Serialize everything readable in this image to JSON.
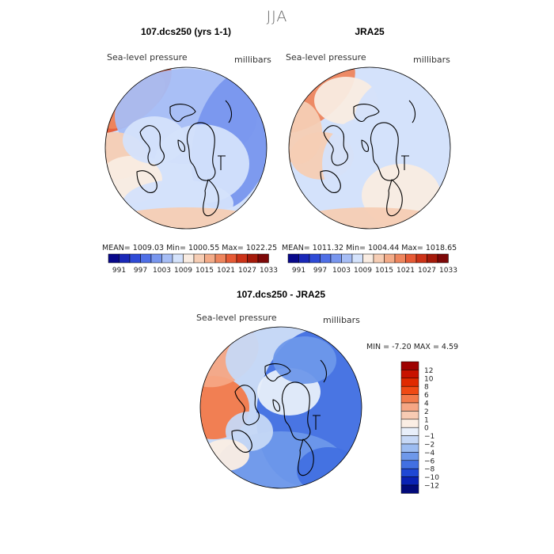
{
  "figure_title": "JJA",
  "chart_data": [
    {
      "type": "heatmap",
      "panel_title": "107.dcs250 (yrs 1-1)",
      "variable_label": "Sea-level pressure",
      "units_label": "millibars",
      "projection": "polar-stereographic-north",
      "stats": {
        "mean_label": "MEAN=",
        "mean": "1009.03",
        "min_label": "Min=",
        "min": "1000.55",
        "max_label": "Max=",
        "max": "1022.25"
      },
      "colorbar": {
        "orientation": "horizontal",
        "tick_labels": [
          "991",
          "997",
          "1003",
          "1009",
          "1015",
          "1021",
          "1027",
          "1033"
        ],
        "colors": [
          "#08088a",
          "#1a28b8",
          "#2e4ad6",
          "#4f6fe6",
          "#7896ee",
          "#a6bdf5",
          "#d4e2fb",
          "#f9ece2",
          "#f6cdb4",
          "#f3ab88",
          "#ee855d",
          "#e65a35",
          "#cc3318",
          "#a51a0a",
          "#7d0808"
        ]
      }
    },
    {
      "type": "heatmap",
      "panel_title": "JRA25",
      "variable_label": "Sea-level pressure",
      "units_label": "millibars",
      "projection": "polar-stereographic-north",
      "stats": {
        "mean_label": "MEAN=",
        "mean": "1011.32",
        "min_label": "Min=",
        "min": "1004.44",
        "max_label": "Max=",
        "max": "1018.65"
      },
      "colorbar": {
        "orientation": "horizontal",
        "tick_labels": [
          "991",
          "997",
          "1003",
          "1009",
          "1015",
          "1021",
          "1027",
          "1033"
        ],
        "colors": [
          "#08088a",
          "#1a28b8",
          "#2e4ad6",
          "#4f6fe6",
          "#7896ee",
          "#a6bdf5",
          "#d4e2fb",
          "#f9ece2",
          "#f6cdb4",
          "#f3ab88",
          "#ee855d",
          "#e65a35",
          "#cc3318",
          "#a51a0a",
          "#7d0808"
        ]
      }
    },
    {
      "type": "heatmap",
      "panel_title": "107.dcs250 - JRA25",
      "variable_label": "Sea-level pressure",
      "units_label": "millibars",
      "projection": "polar-stereographic-north",
      "stats": {
        "min_label": "MIN =",
        "min": "-7.20",
        "max_label": "MAX =",
        "max": "4.59"
      },
      "colorbar": {
        "orientation": "vertical",
        "tick_labels": [
          "12",
          "10",
          "8",
          "6",
          "4",
          "2",
          "1",
          "0",
          "−1",
          "−2",
          "−4",
          "−6",
          "−8",
          "−10",
          "−12"
        ],
        "colors": [
          "#9e0000",
          "#c81200",
          "#e02a00",
          "#f04a14",
          "#f37a4a",
          "#f6a684",
          "#f8cbb3",
          "#fbeee4",
          "#e8effa",
          "#c6d8f6",
          "#9cbcf1",
          "#6e98ea",
          "#4270e2",
          "#1f48d4",
          "#0a22b4",
          "#020a7a"
        ]
      }
    }
  ]
}
